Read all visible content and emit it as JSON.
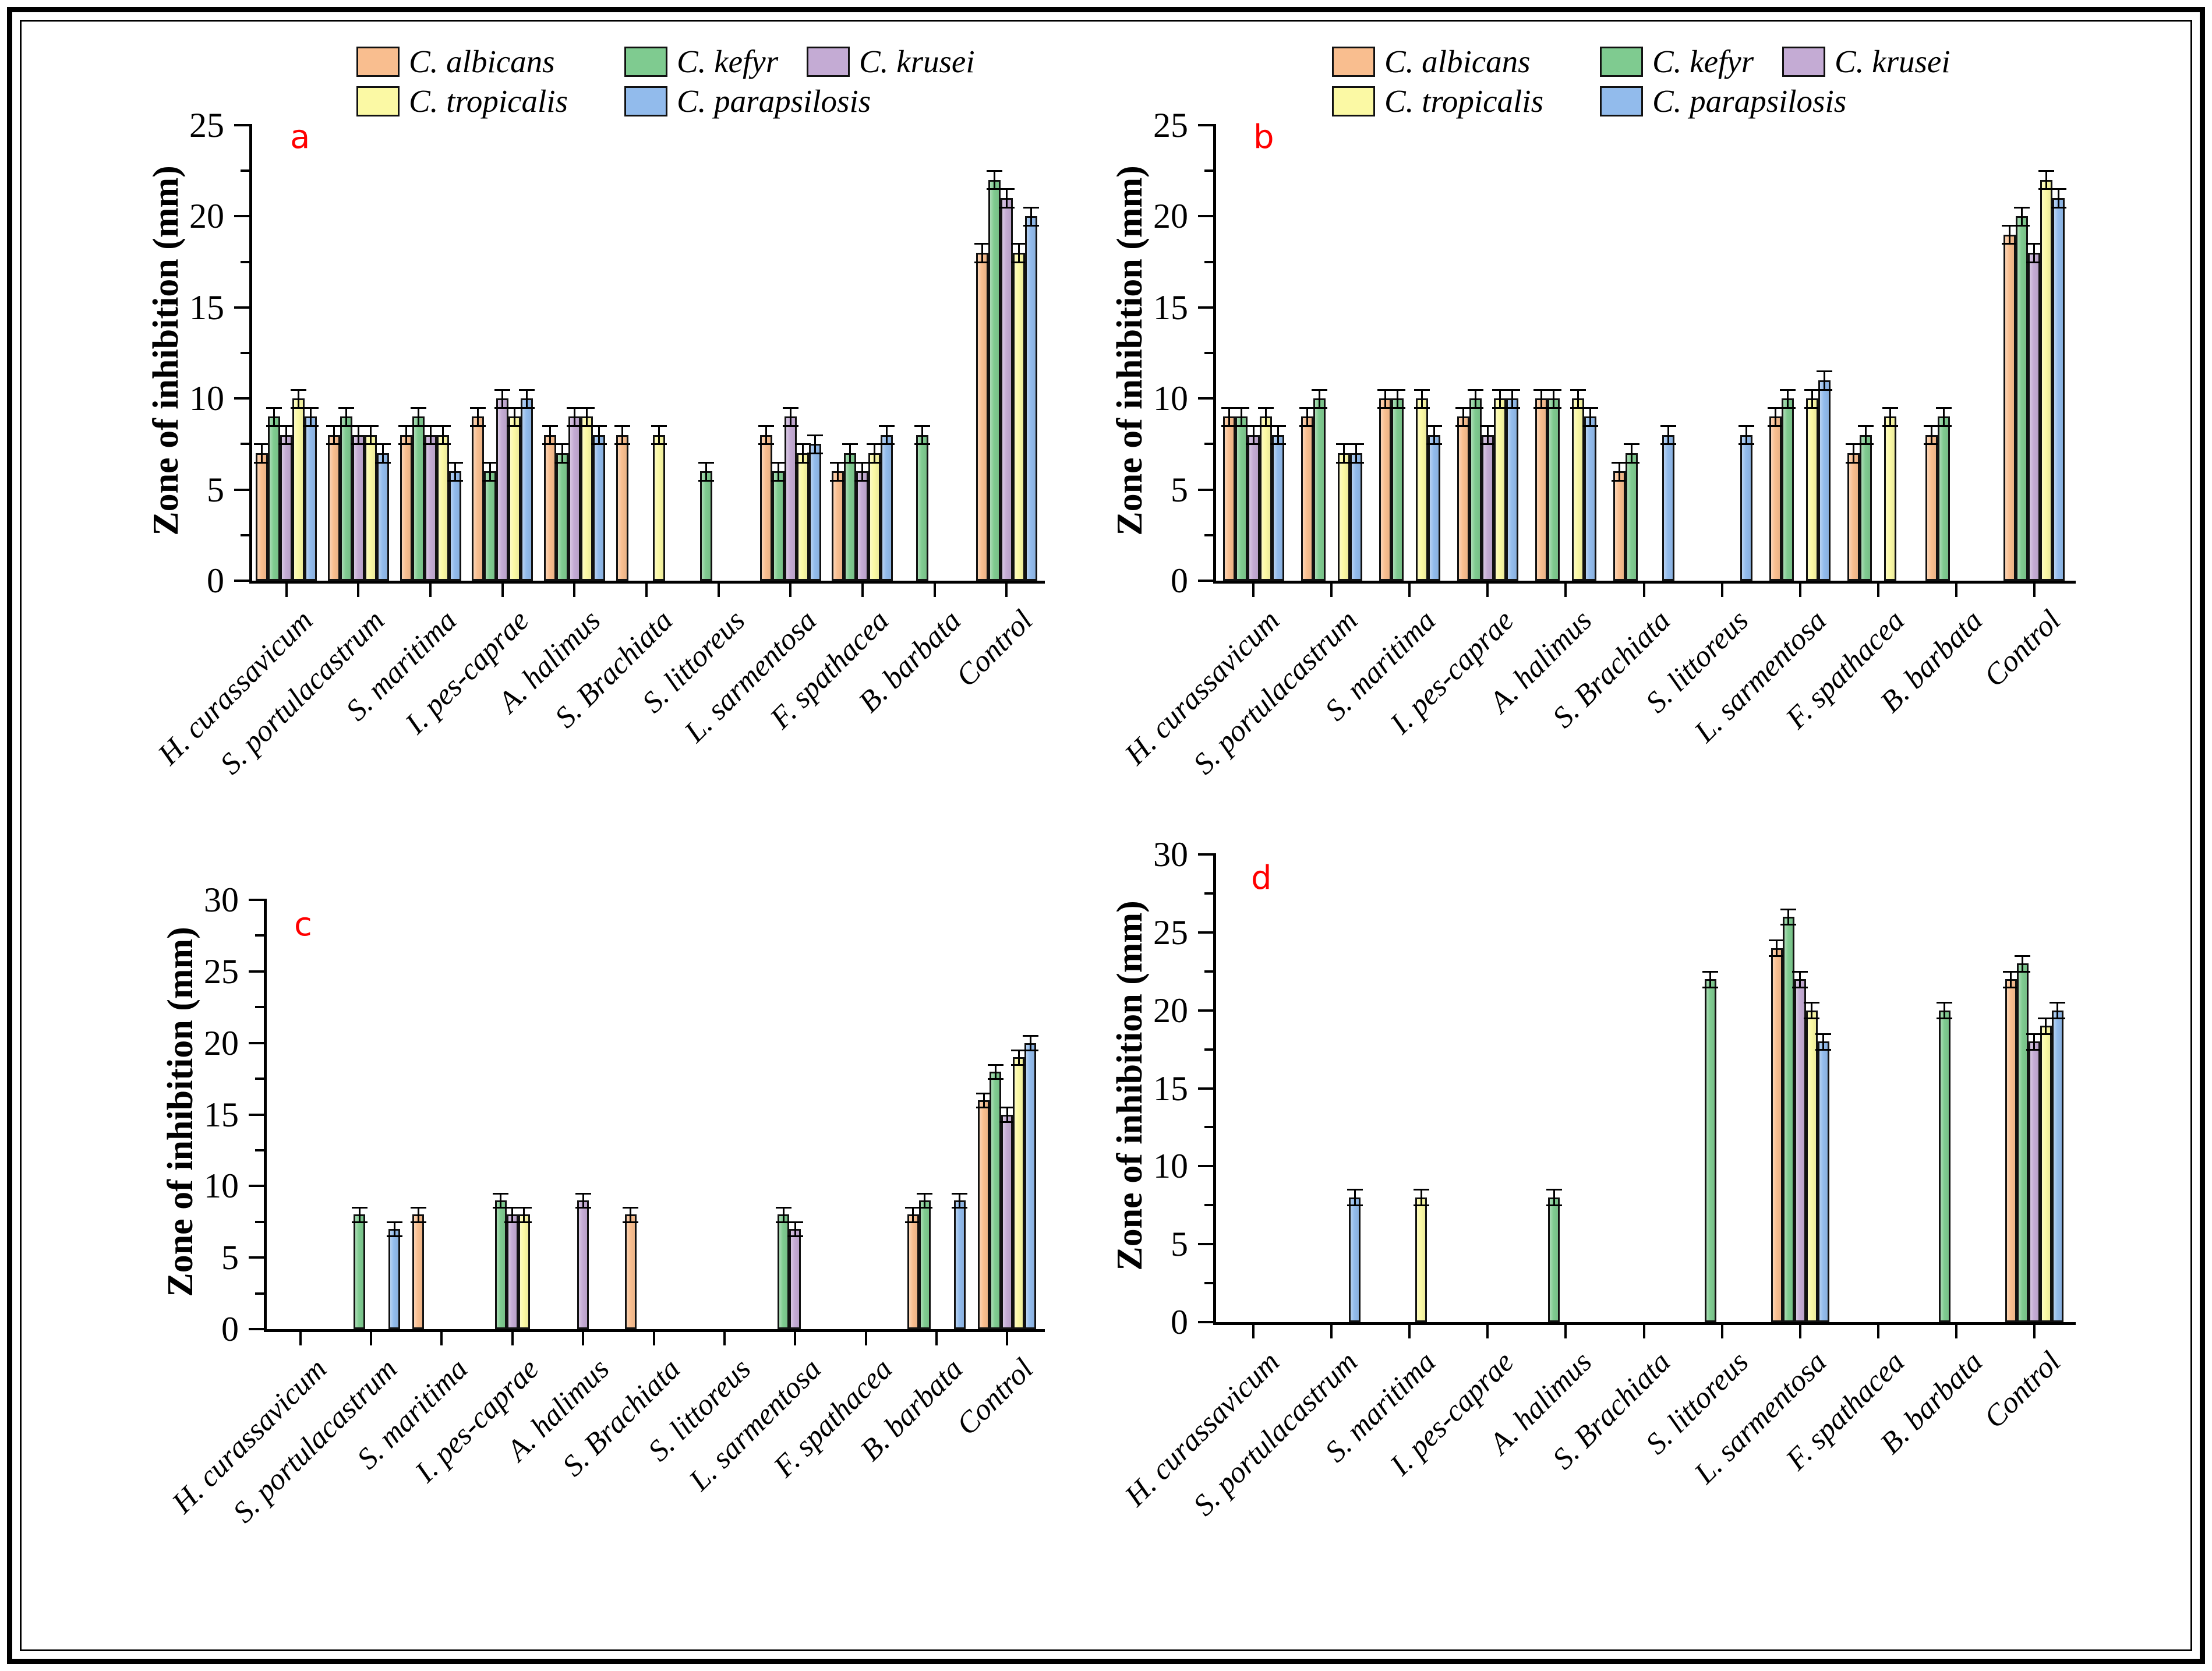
{
  "figure": {
    "background": "#ffffff",
    "frame_color": "#000000",
    "panels": [
      "a",
      "b",
      "c",
      "d"
    ],
    "panel_letter_color": "#ff0000"
  },
  "categories": [
    "H. curassavicum",
    "S. portulacastrum",
    "S. maritima",
    "I. pes-caprae",
    "A. halimus",
    "S. Brachiata",
    "S. littoreus",
    "L. sarmentosa",
    "F. spathacea",
    "B. barbata",
    "Control"
  ],
  "legend": {
    "rows": [
      [
        "C. albicans",
        "C. kefyr",
        "C. krusei"
      ],
      [
        "C. tropicalis",
        "C. parapsilosis"
      ]
    ]
  },
  "series_colors": {
    "C. albicans": "#F9BE8F",
    "C. kefyr": "#7FCB90",
    "C. krusei": "#C4ABD4",
    "C. tropicalis": "#FBF9A4",
    "C. parapsilosis": "#92BBEC"
  },
  "chart_data": [
    {
      "type": "bar",
      "panel": "a",
      "ylabel": "Zone of inhibition (mm)",
      "ylim": [
        0,
        25
      ],
      "yticks": [
        0,
        5,
        10,
        15,
        20,
        25
      ],
      "minor_tick_step": 2.5,
      "grid": false,
      "legend_position": "top",
      "show_legend": true,
      "error_bar_mm": 0.5,
      "series": [
        {
          "name": "C. albicans",
          "values": [
            7,
            8,
            8,
            9,
            8,
            8,
            null,
            8,
            6,
            null,
            18
          ]
        },
        {
          "name": "C. kefyr",
          "values": [
            9,
            9,
            9,
            6,
            7,
            null,
            6,
            6,
            7,
            8,
            22
          ]
        },
        {
          "name": "C. krusei",
          "values": [
            8,
            8,
            8,
            10,
            9,
            null,
            null,
            9,
            6,
            null,
            21
          ]
        },
        {
          "name": "C. tropicalis",
          "values": [
            10,
            8,
            8,
            9,
            9,
            8,
            null,
            7,
            7,
            null,
            18
          ]
        },
        {
          "name": "C. parapsilosis",
          "values": [
            9,
            7,
            6,
            10,
            8,
            null,
            null,
            7.5,
            8,
            null,
            20
          ]
        }
      ]
    },
    {
      "type": "bar",
      "panel": "b",
      "ylabel": "Zone of inhibition (mm)",
      "ylim": [
        0,
        25
      ],
      "yticks": [
        0,
        5,
        10,
        15,
        20,
        25
      ],
      "minor_tick_step": 2.5,
      "grid": false,
      "legend_position": "top",
      "show_legend": true,
      "error_bar_mm": 0.5,
      "series": [
        {
          "name": "C. albicans",
          "values": [
            9,
            9,
            10,
            9,
            10,
            6,
            null,
            9,
            7,
            8,
            19
          ]
        },
        {
          "name": "C. kefyr",
          "values": [
            9,
            10,
            10,
            10,
            10,
            7,
            null,
            10,
            8,
            9,
            20
          ]
        },
        {
          "name": "C. krusei",
          "values": [
            8,
            null,
            null,
            8,
            null,
            null,
            null,
            null,
            null,
            null,
            18
          ]
        },
        {
          "name": "C. tropicalis",
          "values": [
            9,
            7,
            10,
            10,
            10,
            null,
            null,
            10,
            9,
            null,
            22
          ]
        },
        {
          "name": "C. parapsilosis",
          "values": [
            8,
            7,
            8,
            10,
            9,
            8,
            8,
            11,
            null,
            null,
            21
          ]
        }
      ]
    },
    {
      "type": "bar",
      "panel": "c",
      "ylabel": "Zone of inhibition (mm)",
      "ylim": [
        0,
        30
      ],
      "yticks": [
        0,
        5,
        10,
        15,
        20,
        25,
        30
      ],
      "minor_tick_step": 2.5,
      "grid": false,
      "legend_position": "none",
      "show_legend": false,
      "error_bar_mm": 0.5,
      "series": [
        {
          "name": "C. albicans",
          "values": [
            null,
            null,
            8,
            null,
            null,
            8,
            null,
            null,
            null,
            8,
            16
          ]
        },
        {
          "name": "C. kefyr",
          "values": [
            null,
            8,
            null,
            9,
            null,
            null,
            null,
            8,
            null,
            9,
            18
          ]
        },
        {
          "name": "C. krusei",
          "values": [
            null,
            null,
            null,
            8,
            9,
            null,
            null,
            7,
            null,
            null,
            15
          ]
        },
        {
          "name": "C. tropicalis",
          "values": [
            null,
            null,
            null,
            8,
            null,
            null,
            null,
            null,
            null,
            null,
            19
          ]
        },
        {
          "name": "C. parapsilosis",
          "values": [
            null,
            7,
            null,
            null,
            null,
            null,
            null,
            null,
            null,
            9,
            20
          ]
        }
      ]
    },
    {
      "type": "bar",
      "panel": "d",
      "ylabel": "Zone of inhibition (mm)",
      "ylim": [
        0,
        30
      ],
      "yticks": [
        0,
        5,
        10,
        15,
        20,
        25,
        30
      ],
      "minor_tick_step": 2.5,
      "grid": false,
      "legend_position": "none",
      "show_legend": false,
      "error_bar_mm": 0.5,
      "series": [
        {
          "name": "C. albicans",
          "values": [
            null,
            null,
            null,
            null,
            null,
            null,
            null,
            24,
            null,
            null,
            22
          ]
        },
        {
          "name": "C. kefyr",
          "values": [
            null,
            null,
            null,
            null,
            8,
            null,
            22,
            26,
            null,
            20,
            23
          ]
        },
        {
          "name": "C. krusei",
          "values": [
            null,
            null,
            null,
            null,
            null,
            null,
            null,
            22,
            null,
            null,
            18
          ]
        },
        {
          "name": "C. tropicalis",
          "values": [
            null,
            null,
            8,
            null,
            null,
            null,
            null,
            20,
            null,
            null,
            19
          ]
        },
        {
          "name": "C. parapsilosis",
          "values": [
            null,
            8,
            null,
            null,
            null,
            null,
            null,
            18,
            null,
            null,
            20
          ]
        }
      ]
    }
  ]
}
